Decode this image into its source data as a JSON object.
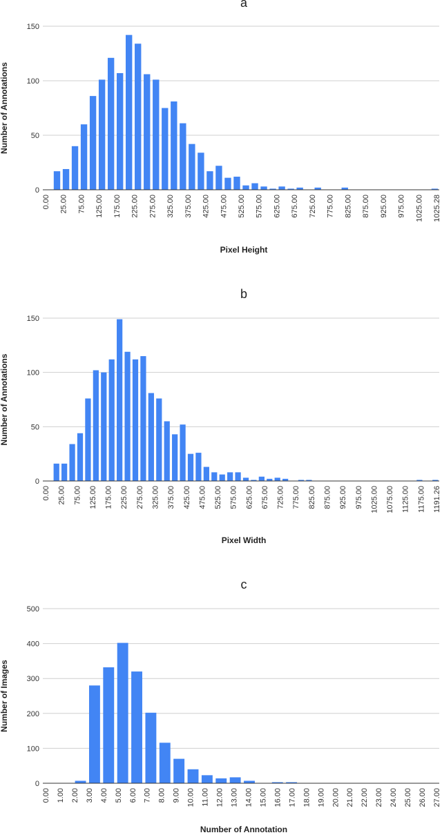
{
  "chart_data": [
    {
      "type": "bar",
      "title": "a",
      "xlabel": "Pixel Height",
      "ylabel": "Number of Annotations",
      "ylim": [
        0,
        150
      ],
      "yticks": [
        0,
        50,
        100,
        150
      ],
      "grid": true,
      "color": "#4285F4",
      "x_tick_labels": [
        "0.00",
        "25.00",
        "75.00",
        "125.00",
        "175.00",
        "225.00",
        "275.00",
        "325.00",
        "375.00",
        "425.00",
        "475.00",
        "525.00",
        "575.00",
        "625.00",
        "675.00",
        "725.00",
        "775.00",
        "825.00",
        "875.00",
        "925.00",
        "975.00",
        "1025.00",
        "1025.28"
      ],
      "values": [
        17,
        19,
        40,
        60,
        86,
        101,
        121,
        107,
        142,
        134,
        106,
        101,
        75,
        81,
        61,
        42,
        34,
        17,
        22,
        11,
        12,
        4,
        6,
        3,
        1,
        3,
        1,
        2,
        0,
        2,
        0,
        0,
        2,
        0,
        0,
        0,
        0,
        0,
        0,
        0,
        0,
        0,
        1
      ]
    },
    {
      "type": "bar",
      "title": "b",
      "xlabel": "Pixel Width",
      "ylabel": "Number of Annotations",
      "ylim": [
        0,
        150
      ],
      "yticks": [
        0,
        50,
        100,
        150
      ],
      "grid": true,
      "color": "#4285F4",
      "x_tick_labels": [
        "0.00",
        "25.00",
        "75.00",
        "125.00",
        "175.00",
        "225.00",
        "275.00",
        "325.00",
        "375.00",
        "425.00",
        "475.00",
        "525.00",
        "575.00",
        "625.00",
        "675.00",
        "725.00",
        "775.00",
        "825.00",
        "875.00",
        "925.00",
        "975.00",
        "1025.00",
        "1075.00",
        "1125.00",
        "1175.00",
        "1191.26"
      ],
      "values": [
        16,
        16,
        34,
        44,
        76,
        102,
        100,
        112,
        149,
        119,
        112,
        115,
        81,
        76,
        55,
        43,
        52,
        25,
        26,
        13,
        8,
        6,
        8,
        8,
        3,
        1,
        4,
        2,
        3,
        2,
        0,
        1,
        1,
        0,
        0,
        0,
        0,
        0,
        0,
        0,
        0,
        0,
        0,
        0,
        0,
        0,
        1,
        0,
        1
      ]
    },
    {
      "type": "bar",
      "title": "c",
      "xlabel": "Number of Annotation",
      "ylabel": "Number of Images",
      "ylim": [
        0,
        500
      ],
      "yticks": [
        0,
        100,
        200,
        300,
        400,
        500
      ],
      "grid": true,
      "color": "#4285F4",
      "x_tick_labels": [
        "0.00",
        "1.00",
        "2.00",
        "3.00",
        "4.00",
        "5.00",
        "6.00",
        "7.00",
        "8.00",
        "9.00",
        "10.00",
        "11.00",
        "12.00",
        "13.00",
        "14.00",
        "15.00",
        "16.00",
        "17.00",
        "18.00",
        "19.00",
        "20.00",
        "21.00",
        "22.00",
        "23.00",
        "24.00",
        "25.00",
        "26.00",
        "27.00"
      ],
      "values": [
        0,
        7,
        280,
        332,
        402,
        320,
        202,
        116,
        70,
        40,
        23,
        14,
        17,
        7,
        0,
        3,
        3,
        0,
        0,
        0,
        0,
        0,
        0,
        0,
        0,
        0,
        0
      ]
    }
  ]
}
